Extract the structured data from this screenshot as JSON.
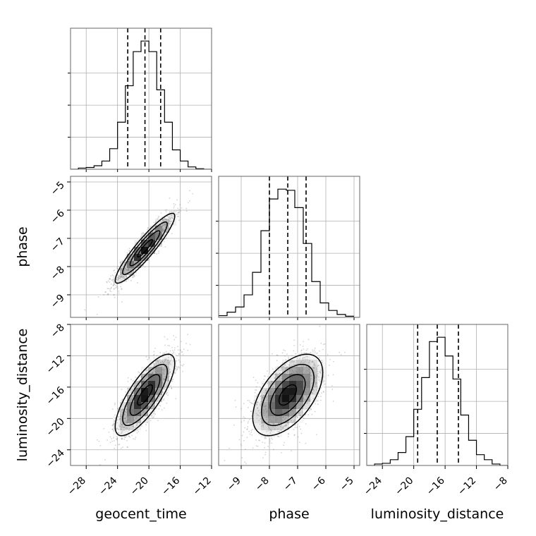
{
  "chart_data": {
    "type": "corner",
    "parameters": [
      {
        "name": "geocent_time",
        "label": "geocent_time",
        "range": [
          -30,
          -12
        ],
        "ticks": [
          -28,
          -24,
          -20,
          -16,
          -12
        ],
        "quantiles": [
          -22.7,
          -20.5,
          -18.5
        ],
        "median": -20.5,
        "sigma": 1.9
      },
      {
        "name": "phase",
        "label": "phase",
        "range": [
          -9.8,
          -4.8
        ],
        "ticks": [
          -9,
          -8,
          -7,
          -6,
          -5
        ],
        "quantiles": [
          -8.0,
          -7.35,
          -6.7
        ],
        "median": -7.35,
        "sigma": 0.62
      },
      {
        "name": "luminosity_distance",
        "label": "luminosity_distance",
        "range": [
          -26,
          -8
        ],
        "ticks": [
          -24,
          -20,
          -16,
          -12,
          -8
        ],
        "quantiles": [
          -19.5,
          -17.0,
          -14.3
        ],
        "median": -17.0,
        "sigma": 2.6
      }
    ],
    "histograms": [
      {
        "param": "geocent_time",
        "bin_edges": [
          -30,
          -29,
          -28,
          -27,
          -26,
          -25,
          -24,
          -23,
          -22,
          -21,
          -20,
          -19,
          -18,
          -17,
          -16,
          -15,
          -14,
          -13,
          -12
        ],
        "counts": [
          0,
          2,
          3,
          6,
          14,
          35,
          80,
          142,
          200,
          218,
          200,
          135,
          80,
          33,
          14,
          4,
          1,
          0
        ]
      },
      {
        "param": "phase",
        "bin_edges": [
          -9.8,
          -9.5,
          -9.2,
          -8.9,
          -8.6,
          -8.3,
          -8.0,
          -7.7,
          -7.4,
          -7.1,
          -6.8,
          -6.5,
          -6.2,
          -5.9,
          -5.6,
          -5.3,
          -5.0
        ],
        "counts": [
          3,
          9,
          18,
          39,
          78,
          150,
          205,
          222,
          220,
          190,
          128,
          62,
          25,
          12,
          5,
          2
        ]
      },
      {
        "param": "luminosity_distance",
        "bin_edges": [
          -26,
          -25,
          -24,
          -23,
          -22,
          -21,
          -20,
          -19,
          -18,
          -17,
          -16,
          -15,
          -14,
          -13,
          -12,
          -11,
          -10,
          -9,
          -8
        ],
        "counts": [
          0,
          2,
          3,
          8,
          18,
          40,
          78,
          122,
          172,
          178,
          152,
          120,
          70,
          35,
          15,
          8,
          2,
          0
        ]
      }
    ],
    "pairs": [
      {
        "x": "geocent_time",
        "y": "phase",
        "correlation": 0.92
      },
      {
        "x": "geocent_time",
        "y": "luminosity_distance",
        "correlation": 0.78
      },
      {
        "x": "phase",
        "y": "luminosity_distance",
        "correlation": 0.55
      }
    ],
    "contour_levels_sigma": [
      0.5,
      1.0,
      1.5,
      2.0
    ],
    "colors": {
      "line": "#000000",
      "grid": "#b0b0b0",
      "points": "#808080",
      "frame": "#666666"
    },
    "grid": true
  }
}
